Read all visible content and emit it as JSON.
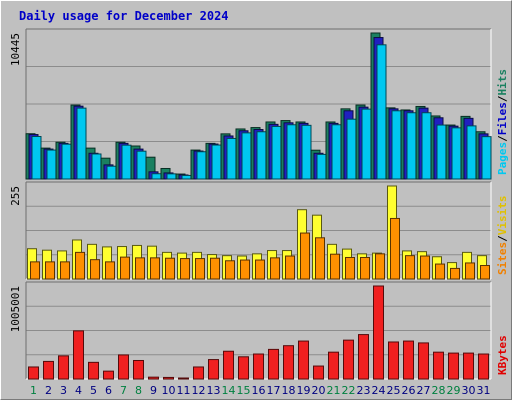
{
  "chart_data": {
    "type": "bar",
    "title": "Daily usage for December 2024",
    "categories": [
      "1",
      "2",
      "3",
      "4",
      "5",
      "6",
      "7",
      "8",
      "9",
      "10",
      "11",
      "12",
      "13",
      "14",
      "15",
      "16",
      "17",
      "18",
      "19",
      "20",
      "21",
      "22",
      "23",
      "24",
      "25",
      "26",
      "27",
      "28",
      "29",
      "30",
      "31"
    ],
    "weekend_days": [
      "1",
      "7",
      "8",
      "14",
      "15",
      "21",
      "22",
      "28",
      "29"
    ],
    "panels": [
      {
        "name": "hits-files-pages",
        "max_label": "10445",
        "ylim": [
          0,
          10445
        ],
        "right_labels": [
          {
            "text": "Pages",
            "color": "#00c8f0"
          },
          {
            "text": "/",
            "color": "#000000"
          },
          {
            "text": "Files",
            "color": "#0000c8"
          },
          {
            "text": "/",
            "color": "#000000"
          },
          {
            "text": "Hits",
            "color": "#1a8060"
          }
        ],
        "series": [
          {
            "name": "Hits",
            "color": "#1a8060",
            "values": [
              3240,
              2210,
              2630,
              5290,
              2210,
              1490,
              2630,
              2360,
              1560,
              752,
              355,
              2070,
              2550,
              3230,
              3580,
              3680,
              4080,
              4180,
              4080,
              2060,
              4080,
              5020,
              5290,
              10445,
              5090,
              4940,
              5190,
              4510,
              3860,
              4480,
              3380
            ]
          },
          {
            "name": "Files",
            "color": "#2020c0",
            "values": [
              3180,
              2140,
              2550,
              5210,
              1840,
              1010,
              2550,
              2140,
              514,
              434,
              288,
              2000,
              2500,
              3080,
              3450,
              3540,
              3910,
              4020,
              3980,
              1840,
              3980,
              4880,
              5140,
              10120,
              5020,
              4880,
              5070,
              4380,
              3780,
              4340,
              3230
            ]
          },
          {
            "name": "Pages",
            "color": "#00c8f0",
            "values": [
              3040,
              2070,
              2490,
              5070,
              1790,
              914,
              2420,
              1990,
              376,
              368,
              253,
              1950,
              2430,
              2900,
              3300,
              3380,
              3760,
              3880,
              3840,
              1760,
              3880,
              4280,
              5000,
              9600,
              4880,
              4740,
              4740,
              3860,
              3660,
              3800,
              3030
            ]
          }
        ]
      },
      {
        "name": "visits-sites",
        "max_label": "255",
        "ylim": [
          0,
          255
        ],
        "right_labels": [
          {
            "text": "Sites",
            "color": "#f08000"
          },
          {
            "text": "/",
            "color": "#000000"
          },
          {
            "text": "Visits",
            "color": "#e0c000"
          }
        ],
        "series": [
          {
            "name": "Visits",
            "color": "#ffff30",
            "values": [
              83,
              79,
              77,
              107,
              95,
              88,
              89,
              92,
              90,
              73,
              71,
              73,
              67,
              64,
              63,
              69,
              78,
              78,
              190,
              175,
              95,
              82,
              69,
              71,
              255,
              77,
              75,
              61,
              45,
              73,
              64
            ]
          },
          {
            "name": "Sites",
            "color": "#ff9000",
            "values": [
              47,
              47,
              47,
              73,
              53,
              47,
              60,
              58,
              58,
              57,
              56,
              56,
              57,
              50,
              52,
              52,
              58,
              63,
              126,
              113,
              68,
              59,
              59,
              69,
              166,
              64,
              63,
              41,
              29,
              44,
              37
            ]
          }
        ]
      },
      {
        "name": "kbytes",
        "max_label": "1005001",
        "ylim": [
          0,
          1005001
        ],
        "right_labels": [
          {
            "text": "KBytes",
            "color": "#e00000"
          }
        ],
        "series": [
          {
            "name": "KBytes",
            "color": "#f02020",
            "values": [
              130000,
              190000,
              250000,
              520000,
              180000,
              85000,
              260000,
              200000,
              20000,
              17000,
              8000,
              130000,
              210000,
              300000,
              240000,
              270000,
              320000,
              360000,
              410000,
              140000,
              290000,
              420000,
              480000,
              1005001,
              400000,
              410000,
              390000,
              290000,
              280000,
              280000,
              270000
            ]
          }
        ]
      }
    ],
    "x_label_colors": {
      "weekday": "#000080",
      "weekend": "#008040"
    }
  }
}
